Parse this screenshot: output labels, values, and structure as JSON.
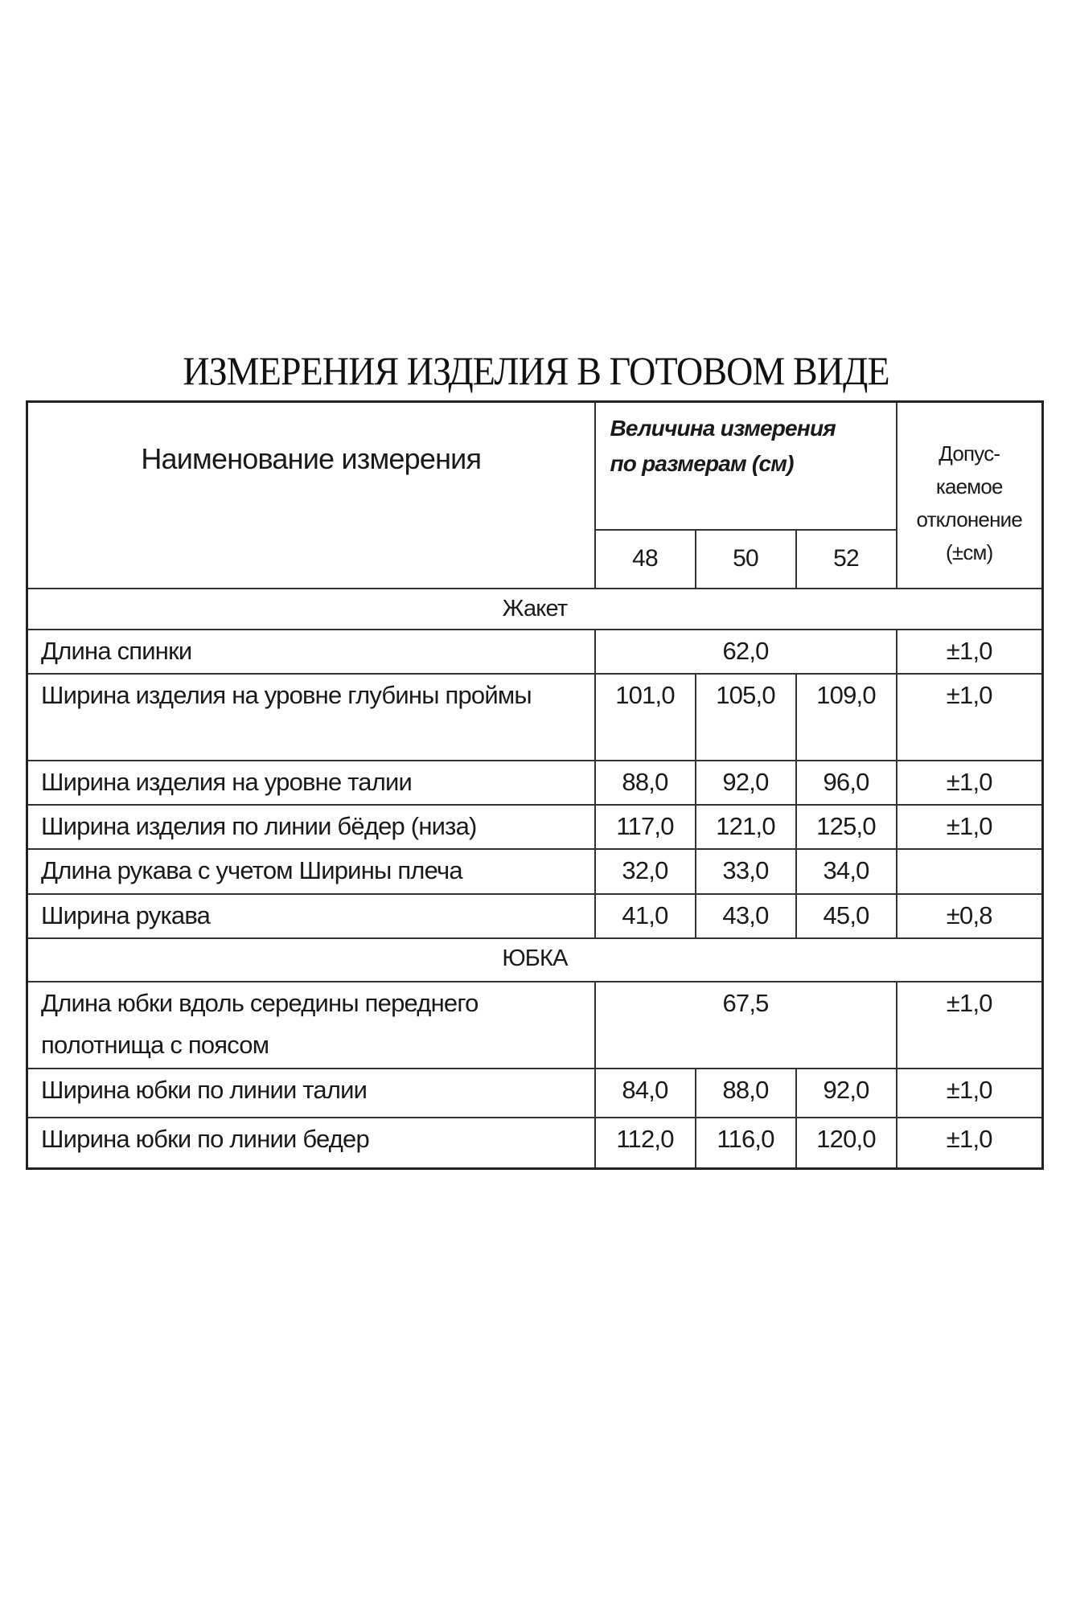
{
  "title": "ИЗМЕРЕНИЯ ИЗДЕЛИЯ В ГОТОВОМ ВИДЕ",
  "header": {
    "name_col": "Наименование измерения",
    "size_group_line1": "Величина измерения",
    "size_group_line2": "по размерам (см)",
    "sizes": [
      "48",
      "50",
      "52"
    ],
    "tolerance_lines": [
      "Допус-",
      "каемое",
      "отклонение",
      "(±см)"
    ]
  },
  "sections": [
    {
      "label": "Жакет",
      "rows": [
        {
          "name": "Длина спинки",
          "merged": "62,0",
          "tolerance": "±1,0"
        },
        {
          "name": "Ширина изделия на уровне глубины проймы",
          "values": [
            "101,0",
            "105,0",
            "109,0"
          ],
          "tolerance": "±1,0"
        },
        {
          "name": "Ширина изделия на уровне талии",
          "values": [
            "88,0",
            "92,0",
            "96,0"
          ],
          "tolerance": "±1,0"
        },
        {
          "name": "Ширина изделия по линии бёдер (низа)",
          "values": [
            "117,0",
            "121,0",
            "125,0"
          ],
          "tolerance": "±1,0"
        },
        {
          "name": "Длина рукава с учетом Ширины плеча",
          "values": [
            "32,0",
            "33,0",
            "34,0"
          ],
          "tolerance": ""
        },
        {
          "name": "Ширина рукава",
          "values": [
            "41,0",
            "43,0",
            "45,0"
          ],
          "tolerance": "±0,8"
        }
      ]
    },
    {
      "label": "ЮБКА",
      "rows": [
        {
          "name": "Длина юбки  вдоль середины переднего полотнища с поясом",
          "merged": "67,5",
          "tolerance": "±1,0"
        },
        {
          "name": "Ширина юбки по линии талии",
          "values": [
            "84,0",
            "88,0",
            "92,0"
          ],
          "tolerance": "±1,0"
        },
        {
          "name": "Ширина юбки по линии бедер",
          "values": [
            "112,0",
            "116,0",
            "120,0"
          ],
          "tolerance": "±1,0"
        }
      ]
    }
  ]
}
